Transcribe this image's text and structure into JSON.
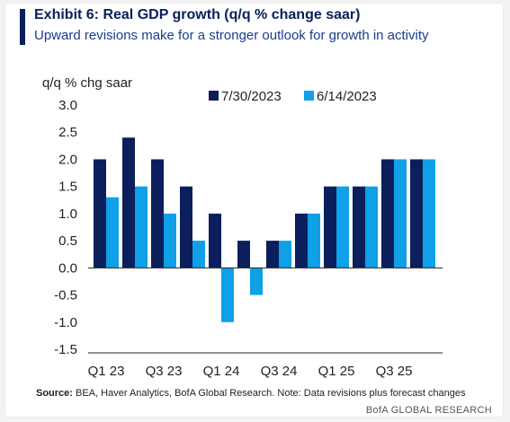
{
  "title": "Exhibit 6: Real GDP growth (q/q % change saar)",
  "subtitle": "Upward revisions make for a stronger outlook for growth in activity",
  "source_label": "Source:",
  "source_text": "BEA, Haver Analytics, BofA Global Research. Note: Data revisions plus forecast changes",
  "brand": "BofA GLOBAL RESEARCH",
  "colors": {
    "dark": "#0a1f5c",
    "light": "#0fa0e8",
    "title": "#0a1f5c"
  },
  "chart_data": {
    "type": "bar",
    "ylabel": "q/q % chg saar",
    "ylim": [
      -1.5,
      3.0
    ],
    "yticks": [
      "3.0",
      "2.5",
      "2.0",
      "1.5",
      "1.0",
      "0.5",
      "0.0",
      "-0.5",
      "-1.0",
      "-1.5"
    ],
    "categories": [
      "Q1 23",
      "Q2 23",
      "Q3 23",
      "Q4 23",
      "Q1 24",
      "Q2 24",
      "Q3 24",
      "Q4 24",
      "Q1 25",
      "Q2 25",
      "Q3 25",
      "Q4 25"
    ],
    "xtick_labels": [
      "Q1 23",
      "Q3 23",
      "Q1 24",
      "Q3 24",
      "Q1 25",
      "Q3 25"
    ],
    "legend_position": "top",
    "series": [
      {
        "name": "7/30/2023",
        "color": "#0a1f5c",
        "values": [
          2.0,
          2.4,
          2.0,
          1.5,
          1.0,
          0.5,
          0.5,
          1.0,
          1.5,
          1.5,
          2.0,
          2.0
        ]
      },
      {
        "name": "6/14/2023",
        "color": "#0fa0e8",
        "values": [
          1.3,
          1.5,
          1.0,
          0.5,
          -1.0,
          -0.5,
          0.5,
          1.0,
          1.5,
          1.5,
          2.0,
          2.0
        ]
      }
    ]
  }
}
